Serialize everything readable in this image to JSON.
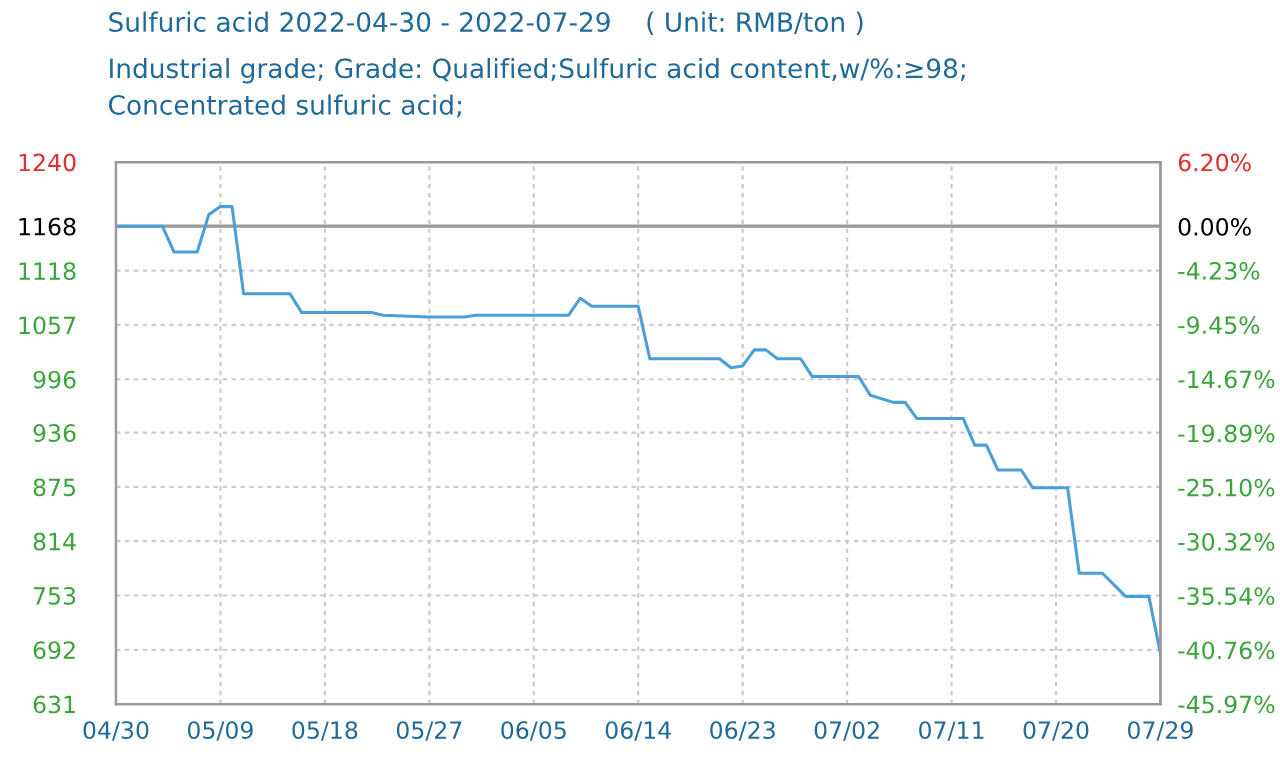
{
  "chart_data": {
    "type": "line",
    "title": "Sulfuric acid 2022-04-30 - 2022-07-29    ( Unit: RMB/ton )",
    "subtitle": "Industrial grade; Grade: Qualified;Sulfuric acid content,w/%:≥98;\nConcentrated sulfuric acid;",
    "x": [
      "2022-04-30",
      "2022-05-04",
      "2022-05-05",
      "2022-05-07",
      "2022-05-08",
      "2022-05-09",
      "2022-05-10",
      "2022-05-11",
      "2022-05-15",
      "2022-05-16",
      "2022-05-22",
      "2022-05-23",
      "2022-05-27",
      "2022-05-30",
      "2022-05-31",
      "2022-06-08",
      "2022-06-09",
      "2022-06-10",
      "2022-06-14",
      "2022-06-15",
      "2022-06-21",
      "2022-06-22",
      "2022-06-23",
      "2022-06-24",
      "2022-06-25",
      "2022-06-26",
      "2022-06-28",
      "2022-06-29",
      "2022-07-03",
      "2022-07-04",
      "2022-07-06",
      "2022-07-07",
      "2022-07-08",
      "2022-07-12",
      "2022-07-13",
      "2022-07-14",
      "2022-07-15",
      "2022-07-17",
      "2022-07-18",
      "2022-07-21",
      "2022-07-22",
      "2022-07-24",
      "2022-07-26",
      "2022-07-28",
      "2022-07-29"
    ],
    "series": [
      {
        "color": "#4a9fd8",
        "values": [
          1168,
          1168,
          1139,
          1139,
          1181,
          1190,
          1190,
          1092,
          1092,
          1071,
          1071,
          1068,
          1066,
          1066,
          1068,
          1068,
          1087,
          1078,
          1078,
          1019,
          1019,
          1009,
          1011,
          1029,
          1029,
          1019,
          1019,
          999,
          999,
          978,
          970,
          970,
          952,
          952,
          922,
          922,
          894,
          894,
          874,
          874,
          778,
          778,
          752,
          752,
          688
        ]
      }
    ],
    "xlim": [
      "2022-04-30",
      "2022-07-29"
    ],
    "xticks": [
      {
        "value": "2022-04-30",
        "label": "04/30"
      },
      {
        "value": "2022-05-09",
        "label": "05/09"
      },
      {
        "value": "2022-05-18",
        "label": "05/18"
      },
      {
        "value": "2022-05-27",
        "label": "05/27"
      },
      {
        "value": "2022-06-05",
        "label": "06/05"
      },
      {
        "value": "2022-06-14",
        "label": "06/14"
      },
      {
        "value": "2022-06-23",
        "label": "06/23"
      },
      {
        "value": "2022-07-02",
        "label": "07/02"
      },
      {
        "value": "2022-07-11",
        "label": "07/11"
      },
      {
        "value": "2022-07-20",
        "label": "07/20"
      },
      {
        "value": "2022-07-29",
        "label": "07/29"
      }
    ],
    "ylim": [
      631,
      1240
    ],
    "yticks": [
      1240,
      1168,
      1118,
      1057,
      996,
      936,
      875,
      814,
      753,
      692,
      631
    ],
    "y2lim": [
      -45.97,
      6.2
    ],
    "y2ticks": [
      {
        "value": 6.2,
        "label": "6.20%"
      },
      {
        "value": 0,
        "label": "0.00%"
      },
      {
        "value": -4.23,
        "label": "-4.23%"
      },
      {
        "value": -9.45,
        "label": "-9.45%"
      },
      {
        "value": -14.67,
        "label": "-14.67%"
      },
      {
        "value": -19.89,
        "label": "-19.89%"
      },
      {
        "value": -25.1,
        "label": "-25.10%"
      },
      {
        "value": -30.32,
        "label": "-30.32%"
      },
      {
        "value": -35.54,
        "label": "-35.54%"
      },
      {
        "value": -40.76,
        "label": "-40.76%"
      },
      {
        "value": -45.97,
        "label": "-45.97%"
      }
    ],
    "ref_lines": [
      {
        "axis": "y",
        "value": 1168,
        "color": "#999999",
        "line_style": "solid"
      }
    ],
    "grid": true,
    "line_style": "solid",
    "marker": "none",
    "legend": false
  }
}
